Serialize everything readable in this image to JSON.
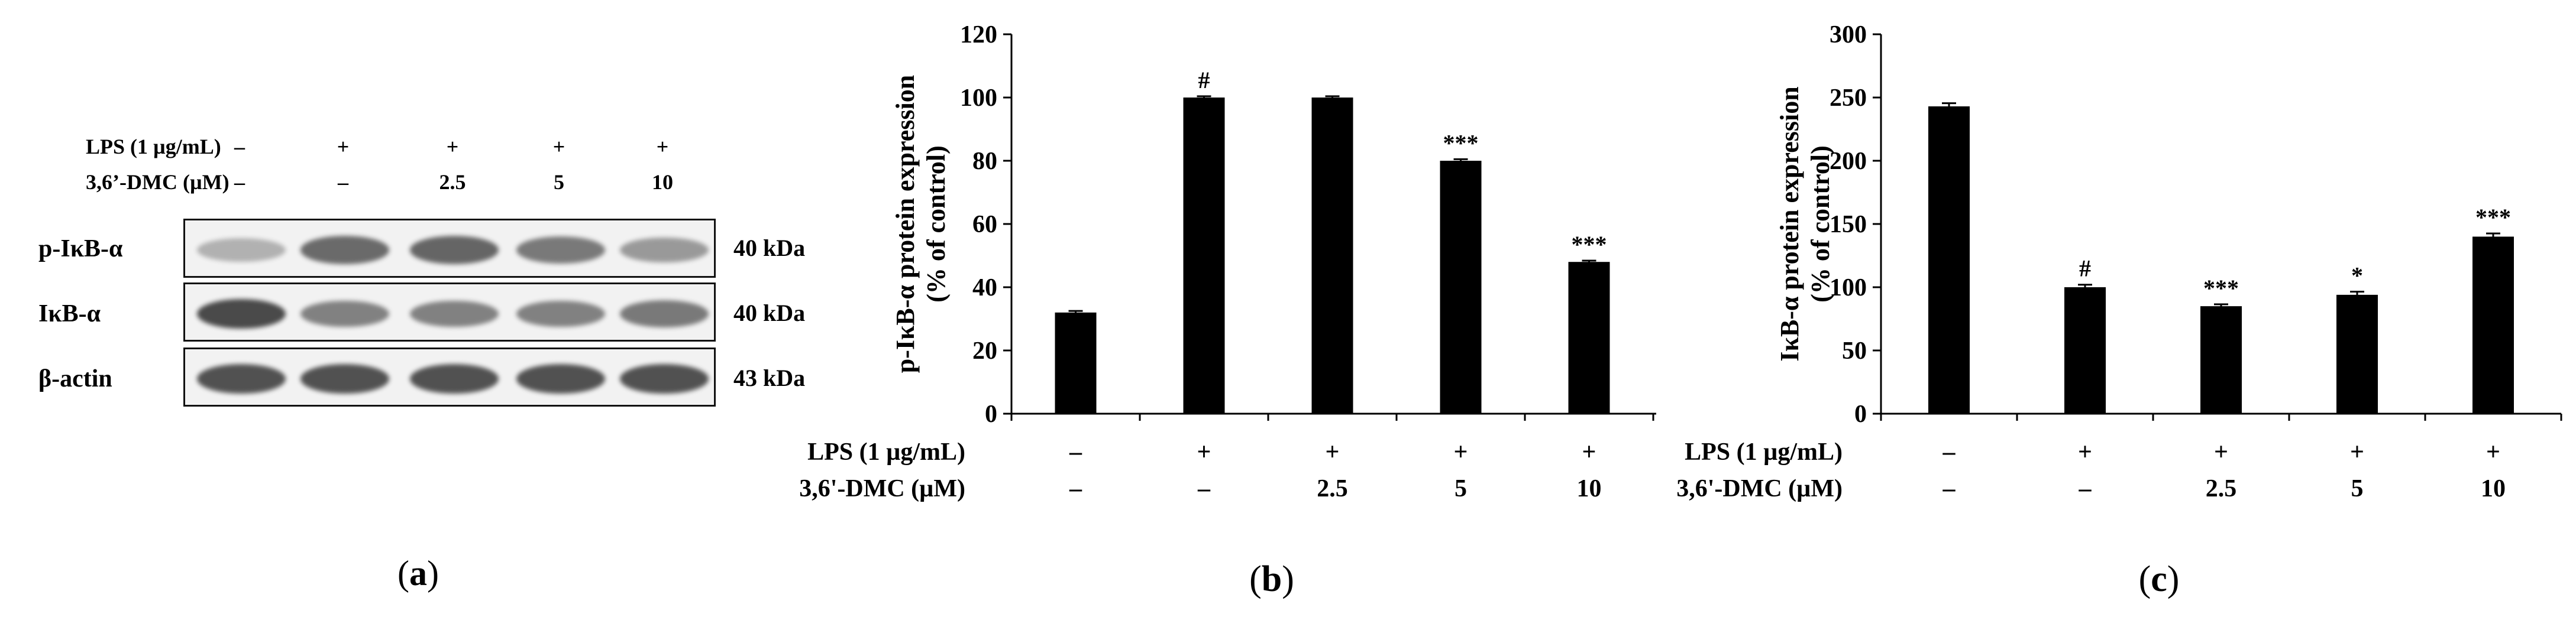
{
  "panel_a": {
    "label": "a",
    "condition_rows": [
      {
        "label": "LPS (1 µg/mL)",
        "values": [
          "–",
          "+",
          "+",
          "+",
          "+"
        ]
      },
      {
        "label": "3,6’-DMC (µM)",
        "values": [
          "–",
          "–",
          "2.5",
          "5",
          "10"
        ]
      }
    ],
    "blots": [
      {
        "label": "p-IκB-α",
        "size": "40 kDa",
        "intensities": [
          0.25,
          0.7,
          0.72,
          0.6,
          0.4
        ]
      },
      {
        "label": "IκB-α",
        "size": "40 kDa",
        "intensities": [
          0.9,
          0.55,
          0.55,
          0.55,
          0.6
        ]
      },
      {
        "label": "β-actin",
        "size": "43 kDa",
        "intensities": [
          0.85,
          0.85,
          0.85,
          0.85,
          0.85
        ]
      }
    ]
  },
  "colors": {
    "bar": "#000000",
    "axis": "#000000",
    "blot_bg": "#f2f2f2",
    "band": "#2a2a2a"
  },
  "chart_data": [
    {
      "panel": "b",
      "type": "bar",
      "ylabel_line1": "p-IκB-α protein expression",
      "ylabel_line2": "(% of control)",
      "ylim": [
        0,
        120
      ],
      "yticks": [
        0,
        20,
        40,
        60,
        80,
        100,
        120
      ],
      "values": [
        32,
        100,
        100,
        80,
        48
      ],
      "errors": [
        0.5,
        0.4,
        0.4,
        0.5,
        0.4
      ],
      "annotations": [
        "",
        "#",
        "",
        "***",
        "***"
      ],
      "condition_rows": [
        {
          "label": "LPS (1 µg/mL)",
          "values": [
            "–",
            "+",
            "+",
            "+",
            "+"
          ]
        },
        {
          "label": "3,6'-DMC (µM)",
          "values": [
            "–",
            "–",
            "2.5",
            "5",
            "10"
          ]
        }
      ],
      "grid": false
    },
    {
      "panel": "c",
      "type": "bar",
      "ylabel_line1": "IκB-α protein expression",
      "ylabel_line2": "(% of control)",
      "ylim": [
        0,
        300
      ],
      "yticks": [
        0,
        50,
        100,
        150,
        200,
        250,
        300
      ],
      "values": [
        243,
        100,
        85,
        94,
        140
      ],
      "errors": [
        2.5,
        2,
        1.5,
        2.5,
        2.5
      ],
      "annotations": [
        "",
        "#",
        "***",
        "*",
        "***"
      ],
      "condition_rows": [
        {
          "label": "LPS (1 µg/mL)",
          "values": [
            "–",
            "+",
            "+",
            "+",
            "+"
          ]
        },
        {
          "label": "3,6'-DMC (µM)",
          "values": [
            "–",
            "–",
            "2.5",
            "5",
            "10"
          ]
        }
      ],
      "grid": false
    }
  ]
}
